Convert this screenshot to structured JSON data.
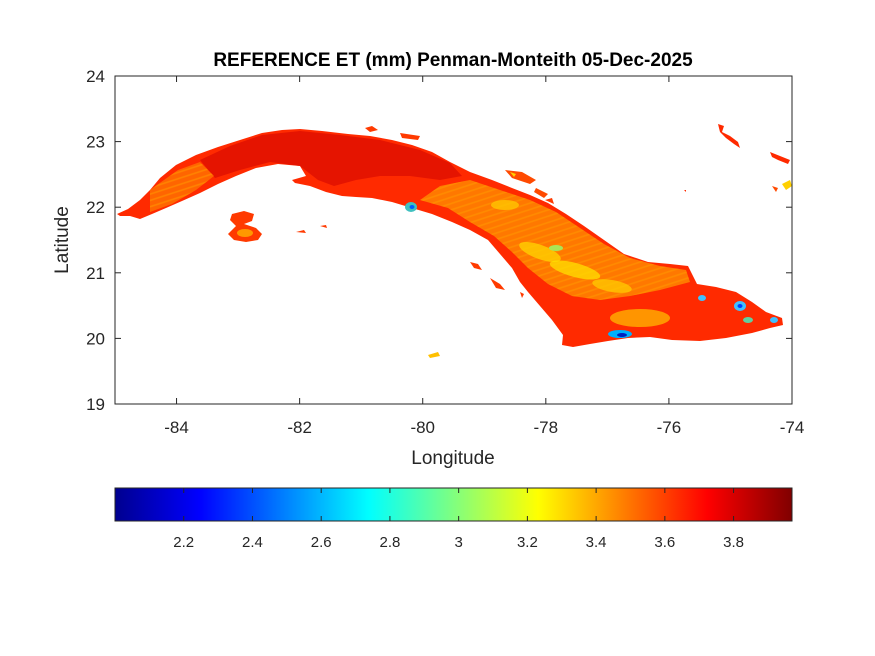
{
  "map": {
    "title": "REFERENCE ET (mm) Penman-Monteith 05-Dec-2025",
    "xlabel": "Longitude",
    "ylabel": "Latitude",
    "x_ticks": [
      "-84",
      "-82",
      "-80",
      "-78",
      "-76",
      "-74"
    ],
    "y_ticks": [
      "19",
      "20",
      "21",
      "22",
      "23",
      "24"
    ],
    "xlim": [
      -85,
      -74
    ],
    "ylim": [
      19,
      24
    ],
    "colormap": "jet",
    "colorbar": {
      "orientation": "horizontal",
      "range": [
        2.0,
        3.97
      ],
      "tick_values": [
        2.2,
        2.4,
        2.6,
        2.8,
        3.0,
        3.2,
        3.4,
        3.6,
        3.8
      ],
      "tick_labels": [
        "2.2",
        "2.4",
        "2.6",
        "2.8",
        "3",
        "3.2",
        "3.4",
        "3.6",
        "3.8"
      ]
    },
    "region": "Cuba",
    "dominant_value_range": [
      3.4,
      3.9
    ],
    "low_value_spots": [
      {
        "lon": -80.2,
        "lat": 22.0,
        "value": 2.9
      },
      {
        "lon": -76.8,
        "lat": 20.05,
        "value": 2.4
      },
      {
        "lon": -74.9,
        "lat": 20.5,
        "value": 2.5
      },
      {
        "lon": -75.5,
        "lat": 20.6,
        "value": 2.6
      },
      {
        "lon": -78.8,
        "lat": 21.6,
        "value": 3.1
      }
    ],
    "colors": {
      "land_main": "#ff2a00",
      "land_dark": "#e01000",
      "land_orange": "#ff8c00",
      "land_yellow": "#ffd000",
      "axes_box": "#262626"
    }
  }
}
